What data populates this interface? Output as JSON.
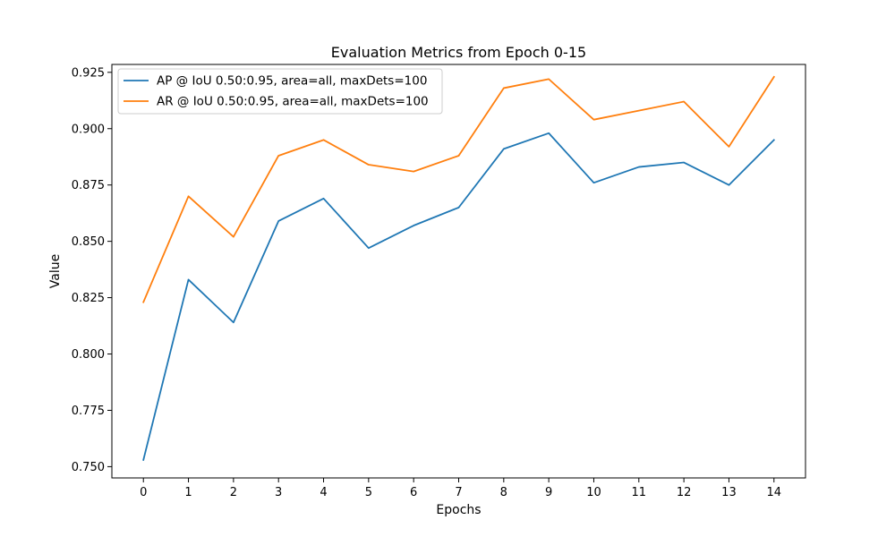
{
  "chart_data": {
    "type": "line",
    "title": "Evaluation Metrics from Epoch 0-15",
    "xlabel": "Epochs",
    "ylabel": "Value",
    "x": [
      0,
      1,
      2,
      3,
      4,
      5,
      6,
      7,
      8,
      9,
      10,
      11,
      12,
      13,
      14
    ],
    "x_ticks": [
      "0",
      "1",
      "2",
      "3",
      "4",
      "5",
      "6",
      "7",
      "8",
      "9",
      "10",
      "11",
      "12",
      "13",
      "14"
    ],
    "y_ticks": [
      "0.750",
      "0.775",
      "0.800",
      "0.825",
      "0.850",
      "0.875",
      "0.900",
      "0.925"
    ],
    "xlim": [
      -0.7,
      14.7
    ],
    "ylim": [
      0.745,
      0.9285
    ],
    "grid": false,
    "legend_position": "upper-left",
    "series": [
      {
        "name": "AP @ IoU 0.50:0.95, area=all, maxDets=100",
        "color": "#1f77b4",
        "values": [
          0.753,
          0.833,
          0.814,
          0.859,
          0.869,
          0.847,
          0.857,
          0.865,
          0.891,
          0.898,
          0.876,
          0.883,
          0.885,
          0.875,
          0.895
        ]
      },
      {
        "name": "AR @ IoU 0.50:0.95, area=all, maxDets=100",
        "color": "#ff7f0e",
        "values": [
          0.823,
          0.87,
          0.852,
          0.888,
          0.895,
          0.884,
          0.881,
          0.888,
          0.918,
          0.922,
          0.904,
          0.908,
          0.912,
          0.892,
          0.923
        ]
      }
    ]
  }
}
